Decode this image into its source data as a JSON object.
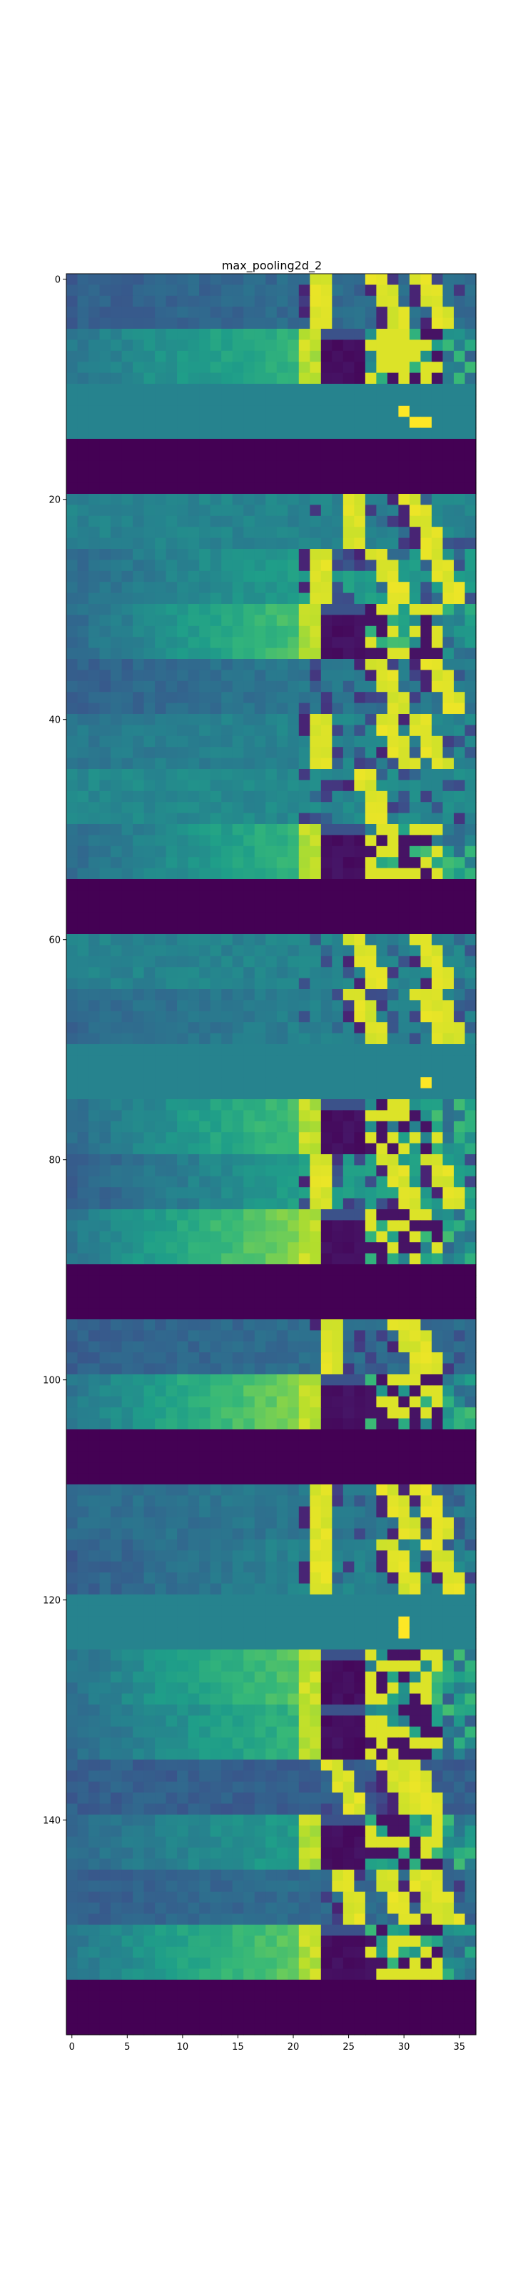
{
  "chart_data": {
    "type": "heatmap",
    "title": "max_pooling2d_2",
    "xlabel": "",
    "ylabel": "",
    "colormap": "viridis",
    "xlim": [
      -0.5,
      36.5
    ],
    "ylim": [
      -0.5,
      159.5
    ],
    "x_ticks": [
      0,
      5,
      10,
      15,
      20,
      25,
      30,
      35
    ],
    "x_tick_labels": [
      "0",
      "5",
      "10",
      "15",
      "20",
      "25",
      "30",
      "35"
    ],
    "y_ticks": [
      0,
      20,
      40,
      60,
      80,
      100,
      120,
      140
    ],
    "y_tick_labels": [
      "0",
      "20",
      "40",
      "60",
      "80",
      "100",
      "120",
      "140"
    ],
    "n_cols": 37,
    "n_rows": 160,
    "row_blocks": [
      {
        "rows": [
          0,
          4
        ],
        "pattern": "stripes",
        "bg": 0.3,
        "grad": 0.05,
        "stripes": [
          {
            "start": 22,
            "slope": 0.0
          },
          {
            "start": 27,
            "slope": 0.6
          },
          {
            "start": 31,
            "slope": 0.6
          }
        ]
      },
      {
        "rows": [
          5,
          9
        ],
        "pattern": "edge",
        "bg": 0.4,
        "grad": 0.25
      },
      {
        "rows": [
          10,
          14
        ],
        "pattern": "flat",
        "value": 0.45,
        "spots": [
          {
            "c": 30,
            "r": 12,
            "v": 1.0
          },
          {
            "c": 31,
            "r": 13,
            "v": 1.0
          },
          {
            "c": 32,
            "r": 13,
            "v": 1.0
          }
        ]
      },
      {
        "rows": [
          15,
          19
        ],
        "pattern": "dead"
      },
      {
        "rows": [
          20,
          24
        ],
        "pattern": "stripes",
        "bg": 0.45,
        "grad": 0.0,
        "stripes": [
          {
            "start": 25,
            "slope": 0.0
          },
          {
            "start": 30,
            "slope": 0.5
          }
        ]
      },
      {
        "rows": [
          25,
          29
        ],
        "pattern": "stripes",
        "bg": 0.35,
        "grad": 0.2,
        "stripes": [
          {
            "start": 22,
            "slope": 0.0
          },
          {
            "start": 27,
            "slope": 0.6
          },
          {
            "start": 32,
            "slope": 0.5
          }
        ]
      },
      {
        "rows": [
          30,
          34
        ],
        "pattern": "edge",
        "bg": 0.35,
        "grad": 0.35
      },
      {
        "rows": [
          35,
          39
        ],
        "pattern": "stripes",
        "bg": 0.3,
        "grad": 0.1,
        "stripes": [
          {
            "start": 27,
            "slope": 0.5
          },
          {
            "start": 32,
            "slope": 0.6
          }
        ]
      },
      {
        "rows": [
          40,
          44
        ],
        "pattern": "stripes",
        "bg": 0.4,
        "grad": 0.05,
        "stripes": [
          {
            "start": 22,
            "slope": 0.0
          },
          {
            "start": 28,
            "slope": 0.4
          },
          {
            "start": 31,
            "slope": 0.4
          }
        ]
      },
      {
        "rows": [
          45,
          49
        ],
        "pattern": "stripes",
        "bg": 0.47,
        "grad": 0.0,
        "stripes": [
          {
            "start": 26,
            "slope": 0.3
          }
        ]
      },
      {
        "rows": [
          50,
          54
        ],
        "pattern": "edge",
        "bg": 0.35,
        "grad": 0.3
      },
      {
        "rows": [
          55,
          59
        ],
        "pattern": "dead"
      },
      {
        "rows": [
          60,
          64
        ],
        "pattern": "stripes",
        "bg": 0.45,
        "grad": 0.0,
        "stripes": [
          {
            "start": 25,
            "slope": 0.5
          },
          {
            "start": 31,
            "slope": 0.5
          }
        ]
      },
      {
        "rows": [
          65,
          69
        ],
        "pattern": "stripes",
        "bg": 0.33,
        "grad": 0.1,
        "stripes": [
          {
            "start": 25,
            "slope": 0.5
          },
          {
            "start": 31,
            "slope": 0.5
          },
          {
            "start": 32,
            "slope": 0.5
          }
        ]
      },
      {
        "rows": [
          70,
          74
        ],
        "pattern": "flat",
        "value": 0.45,
        "spots": [
          {
            "c": 32,
            "r": 73,
            "v": 1.0
          }
        ]
      },
      {
        "rows": [
          75,
          79
        ],
        "pattern": "edge",
        "bg": 0.35,
        "grad": 0.35
      },
      {
        "rows": [
          80,
          84
        ],
        "pattern": "stripes",
        "bg": 0.3,
        "grad": 0.25,
        "stripes": [
          {
            "start": 22,
            "slope": 0.0
          },
          {
            "start": 28,
            "slope": 0.5
          },
          {
            "start": 32,
            "slope": 0.5
          }
        ]
      },
      {
        "rows": [
          85,
          89
        ],
        "pattern": "edge",
        "bg": 0.4,
        "grad": 0.4
      },
      {
        "rows": [
          90,
          94
        ],
        "pattern": "dead"
      },
      {
        "rows": [
          95,
          99
        ],
        "pattern": "stripes",
        "bg": 0.3,
        "grad": 0.05,
        "stripes": [
          {
            "start": 23,
            "slope": 0.0
          },
          {
            "start": 29,
            "slope": 0.6
          },
          {
            "start": 30,
            "slope": 0.6
          }
        ]
      },
      {
        "rows": [
          100,
          104
        ],
        "pattern": "edge",
        "bg": 0.4,
        "grad": 0.4
      },
      {
        "rows": [
          105,
          109
        ],
        "pattern": "dead"
      },
      {
        "rows": [
          110,
          114
        ],
        "pattern": "stripes",
        "bg": 0.35,
        "grad": 0.05,
        "stripes": [
          {
            "start": 22,
            "slope": 0.0
          },
          {
            "start": 28,
            "slope": 0.6
          },
          {
            "start": 31,
            "slope": 0.6
          }
        ]
      },
      {
        "rows": [
          115,
          119
        ],
        "pattern": "stripes",
        "bg": 0.3,
        "grad": 0.15,
        "stripes": [
          {
            "start": 22,
            "slope": 0.0
          },
          {
            "start": 28,
            "slope": 0.5
          },
          {
            "start": 32,
            "slope": 0.5
          }
        ]
      },
      {
        "rows": [
          120,
          124
        ],
        "pattern": "flat",
        "value": 0.45,
        "spots": [
          {
            "c": 30,
            "r": 122,
            "v": 1.0
          },
          {
            "c": 30,
            "r": 123,
            "v": 1.0
          }
        ]
      },
      {
        "rows": [
          125,
          129
        ],
        "pattern": "edge",
        "bg": 0.38,
        "grad": 0.35
      },
      {
        "rows": [
          130,
          134
        ],
        "pattern": "edge",
        "bg": 0.35,
        "grad": 0.3
      },
      {
        "rows": [
          135,
          139
        ],
        "pattern": "stripes",
        "bg": 0.3,
        "grad": 0.0,
        "stripes": [
          {
            "start": 23,
            "slope": 0.5
          },
          {
            "start": 28,
            "slope": 0.5
          },
          {
            "start": 30,
            "slope": 0.5
          }
        ]
      },
      {
        "rows": [
          140,
          144
        ],
        "pattern": "edge",
        "bg": 0.35,
        "grad": 0.2
      },
      {
        "rows": [
          145,
          149
        ],
        "pattern": "stripes",
        "bg": 0.3,
        "grad": 0.05,
        "stripes": [
          {
            "start": 24,
            "slope": 0.3
          },
          {
            "start": 28,
            "slope": 0.4
          },
          {
            "start": 31,
            "slope": 0.4
          },
          {
            "start": 32,
            "slope": 0.4
          }
        ]
      },
      {
        "rows": [
          150,
          154
        ],
        "pattern": "edge",
        "bg": 0.4,
        "grad": 0.35
      },
      {
        "rows": [
          155,
          159
        ],
        "pattern": "dead"
      }
    ]
  }
}
